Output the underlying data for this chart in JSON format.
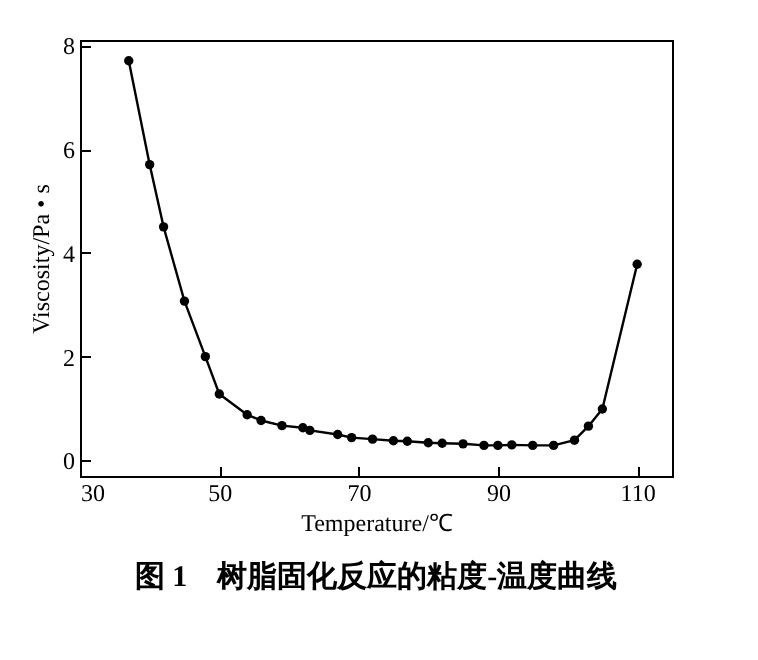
{
  "chart_data": {
    "type": "line",
    "title": "图 1　树脂固化反应的粘度-温度曲线",
    "xlabel": "Temperature/℃",
    "ylabel": "Viscosity/Pa • s",
    "x": [
      37,
      40,
      42,
      45,
      48,
      50,
      54,
      56,
      59,
      62,
      63,
      67,
      69,
      72,
      75,
      77,
      80,
      82,
      85,
      88,
      90,
      92,
      95,
      98,
      101,
      103,
      105,
      110
    ],
    "series": [
      {
        "color": "#000000",
        "values": [
          7.7,
          5.7,
          4.5,
          3.07,
          2.0,
          1.28,
          0.88,
          0.77,
          0.67,
          0.63,
          0.58,
          0.5,
          0.44,
          0.41,
          0.38,
          0.37,
          0.34,
          0.33,
          0.32,
          0.29,
          0.29,
          0.3,
          0.29,
          0.29,
          0.39,
          0.66,
          0.99,
          3.78
        ]
      }
    ],
    "xlim": [
      30,
      115
    ],
    "ylim": [
      -0.3,
      8.1
    ],
    "xticks": [
      30,
      50,
      70,
      90,
      110
    ],
    "yticks": [
      0,
      2,
      4,
      6,
      8
    ],
    "grid": false,
    "marker": "circle",
    "line_style": "solid"
  }
}
